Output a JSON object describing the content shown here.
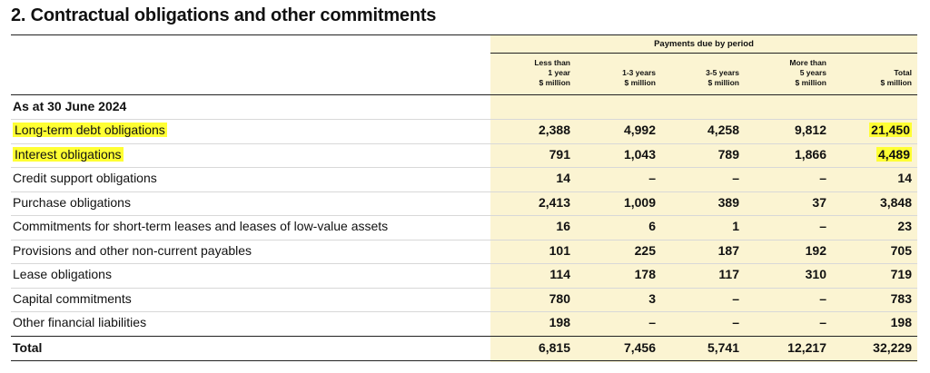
{
  "title": "2. Contractual obligations and other commitments",
  "period_header": "Payments due by period",
  "columns": [
    {
      "line1": "Less than",
      "line2": "1 year",
      "line3": "$ million"
    },
    {
      "line1": "",
      "line2": "1-3 years",
      "line3": "$ million"
    },
    {
      "line1": "",
      "line2": "3-5 years",
      "line3": "$ million"
    },
    {
      "line1": "More than",
      "line2": "5 years",
      "line3": "$ million"
    },
    {
      "line1": "",
      "line2": "Total",
      "line3": "$ million"
    }
  ],
  "section_label": "As at 30 June 2024",
  "rows": [
    {
      "label": "Long-term debt obligations",
      "values": [
        "2,388",
        "4,992",
        "4,258",
        "9,812",
        "21,450"
      ]
    },
    {
      "label": "Interest obligations",
      "values": [
        "791",
        "1,043",
        "789",
        "1,866",
        "4,489"
      ]
    },
    {
      "label": "Credit support obligations",
      "values": [
        "14",
        "–",
        "–",
        "–",
        "14"
      ]
    },
    {
      "label": "Purchase obligations",
      "values": [
        "2,413",
        "1,009",
        "389",
        "37",
        "3,848"
      ]
    },
    {
      "label": "Commitments for short-term leases and leases of low-value assets",
      "values": [
        "16",
        "6",
        "1",
        "–",
        "23"
      ]
    },
    {
      "label": "Provisions and other non-current payables",
      "values": [
        "101",
        "225",
        "187",
        "192",
        "705"
      ]
    },
    {
      "label": "Lease obligations",
      "values": [
        "114",
        "178",
        "117",
        "310",
        "719"
      ]
    },
    {
      "label": "Capital commitments",
      "values": [
        "780",
        "3",
        "–",
        "–",
        "783"
      ]
    },
    {
      "label": "Other financial liabilities",
      "values": [
        "198",
        "–",
        "–",
        "–",
        "198"
      ]
    }
  ],
  "total": {
    "label": "Total",
    "values": [
      "6,815",
      "7,456",
      "5,741",
      "12,217",
      "32,229"
    ]
  },
  "highlight_color": "#ffff33"
}
